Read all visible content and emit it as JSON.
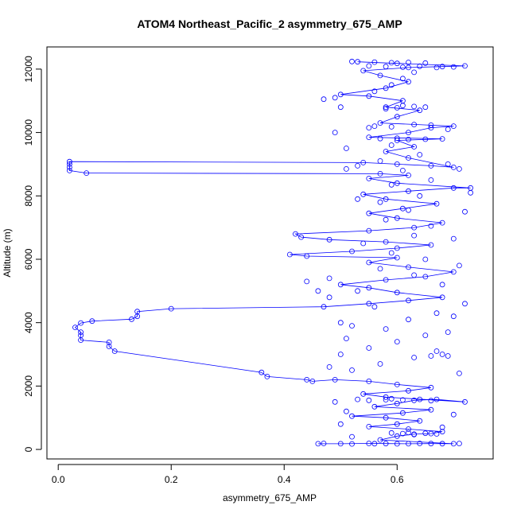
{
  "chart_data": {
    "type": "scatter",
    "title": "ATOM4 Northeast_Pacific_2 asymmetry_675_AMP",
    "xlabel": "asymmetry_675_AMP",
    "ylabel": "Altitude (m)",
    "xlim": [
      -0.02,
      0.77
    ],
    "ylim": [
      -300,
      12700
    ],
    "x_ticks": [
      0.0,
      0.2,
      0.4,
      0.6
    ],
    "x_tick_labels": [
      "0.0",
      "0.2",
      "0.4",
      "0.6"
    ],
    "y_ticks": [
      0,
      2000,
      4000,
      6000,
      8000,
      10000,
      12000
    ],
    "y_tick_labels": [
      "0",
      "2000",
      "4000",
      "6000",
      "8000",
      "10000",
      "12000"
    ],
    "grid": false,
    "colors": {
      "series": "#0000ff",
      "axes": "#000000",
      "background": "#ffffff"
    },
    "series": [
      {
        "style": "points-and-lines",
        "points": [
          [
            0.46,
            180
          ],
          [
            0.5,
            180
          ],
          [
            0.55,
            190
          ],
          [
            0.58,
            185
          ],
          [
            0.62,
            180
          ],
          [
            0.66,
            185
          ],
          [
            0.7,
            180
          ],
          [
            0.57,
            300
          ],
          [
            0.6,
            420
          ],
          [
            0.63,
            480
          ],
          [
            0.66,
            500
          ],
          [
            0.68,
            560
          ],
          [
            0.62,
            640
          ],
          [
            0.55,
            720
          ],
          [
            0.6,
            800
          ],
          [
            0.64,
            900
          ],
          [
            0.58,
            1000
          ],
          [
            0.52,
            1050
          ],
          [
            0.61,
            1150
          ],
          [
            0.66,
            1250
          ],
          [
            0.56,
            1350
          ],
          [
            0.6,
            1450
          ],
          [
            0.63,
            1550
          ],
          [
            0.67,
            1580
          ],
          [
            0.72,
            1500
          ],
          [
            0.58,
            1650
          ],
          [
            0.54,
            1750
          ],
          [
            0.62,
            1850
          ],
          [
            0.66,
            1950
          ],
          [
            0.6,
            2050
          ],
          [
            0.55,
            2150
          ],
          [
            0.49,
            2200
          ],
          [
            0.45,
            2150
          ],
          [
            0.44,
            2200
          ],
          [
            0.37,
            2300
          ],
          [
            0.36,
            2430
          ],
          [
            0.1,
            3100
          ],
          [
            0.09,
            3250
          ],
          [
            0.09,
            3380
          ],
          [
            0.04,
            3450
          ],
          [
            0.04,
            3600
          ],
          [
            0.04,
            3700
          ],
          [
            0.03,
            3850
          ],
          [
            0.04,
            3990
          ],
          [
            0.06,
            4050
          ],
          [
            0.13,
            4110
          ],
          [
            0.14,
            4200
          ],
          [
            0.14,
            4350
          ],
          [
            0.2,
            4440
          ],
          [
            0.47,
            4500
          ],
          [
            0.55,
            4600
          ],
          [
            0.62,
            4700
          ],
          [
            0.68,
            4800
          ],
          [
            0.6,
            4950
          ],
          [
            0.55,
            5100
          ],
          [
            0.5,
            5200
          ],
          [
            0.58,
            5350
          ],
          [
            0.65,
            5450
          ],
          [
            0.7,
            5600
          ],
          [
            0.62,
            5750
          ],
          [
            0.55,
            5900
          ],
          [
            0.6,
            6050
          ],
          [
            0.44,
            6100
          ],
          [
            0.41,
            6150
          ],
          [
            0.52,
            6250
          ],
          [
            0.6,
            6350
          ],
          [
            0.66,
            6450
          ],
          [
            0.58,
            6550
          ],
          [
            0.48,
            6620
          ],
          [
            0.43,
            6700
          ],
          [
            0.42,
            6800
          ],
          [
            0.55,
            6900
          ],
          [
            0.63,
            7000
          ],
          [
            0.68,
            7150
          ],
          [
            0.6,
            7300
          ],
          [
            0.55,
            7450
          ],
          [
            0.61,
            7600
          ],
          [
            0.67,
            7750
          ],
          [
            0.58,
            7900
          ],
          [
            0.54,
            8050
          ],
          [
            0.62,
            8150
          ],
          [
            0.7,
            8250
          ],
          [
            0.73,
            8250
          ],
          [
            0.6,
            8400
          ],
          [
            0.55,
            8550
          ],
          [
            0.62,
            8650
          ],
          [
            0.57,
            8700
          ],
          [
            0.05,
            8720
          ],
          [
            0.02,
            8800
          ],
          [
            0.02,
            8900
          ],
          [
            0.02,
            9000
          ],
          [
            0.02,
            9080
          ],
          [
            0.54,
            9050
          ],
          [
            0.6,
            9000
          ],
          [
            0.66,
            8950
          ],
          [
            0.7,
            8900
          ],
          [
            0.62,
            9200
          ],
          [
            0.58,
            9400
          ],
          [
            0.63,
            9550
          ],
          [
            0.6,
            9750
          ],
          [
            0.68,
            9800
          ],
          [
            0.55,
            9850
          ],
          [
            0.62,
            10000
          ],
          [
            0.66,
            10150
          ],
          [
            0.7,
            10200
          ],
          [
            0.57,
            10300
          ],
          [
            0.6,
            10500
          ],
          [
            0.64,
            10700
          ],
          [
            0.58,
            10800
          ],
          [
            0.61,
            11000
          ],
          [
            0.55,
            11150
          ],
          [
            0.5,
            11200
          ],
          [
            0.58,
            11400
          ],
          [
            0.62,
            11600
          ],
          [
            0.57,
            11800
          ],
          [
            0.54,
            11950
          ],
          [
            0.62,
            12050
          ],
          [
            0.68,
            12080
          ],
          [
            0.72,
            12100
          ],
          [
            0.6,
            12180
          ],
          [
            0.53,
            12230
          ]
        ]
      },
      {
        "style": "points",
        "points": [
          [
            0.47,
            190
          ],
          [
            0.52,
            175
          ],
          [
            0.56,
            182
          ],
          [
            0.6,
            178
          ],
          [
            0.64,
            190
          ],
          [
            0.68,
            182
          ],
          [
            0.71,
            188
          ],
          [
            0.59,
            520
          ],
          [
            0.62,
            530
          ],
          [
            0.65,
            510
          ],
          [
            0.67,
            490
          ],
          [
            0.63,
            470
          ],
          [
            0.61,
            500
          ],
          [
            0.55,
            1550
          ],
          [
            0.58,
            1570
          ],
          [
            0.61,
            1560
          ],
          [
            0.64,
            1580
          ],
          [
            0.66,
            1540
          ],
          [
            0.59,
            1600
          ],
          [
            0.53,
            1580
          ],
          [
            0.52,
            2500
          ],
          [
            0.57,
            2700
          ],
          [
            0.63,
            2900
          ],
          [
            0.68,
            3000
          ],
          [
            0.55,
            3200
          ],
          [
            0.6,
            3400
          ],
          [
            0.65,
            3600
          ],
          [
            0.58,
            3800
          ],
          [
            0.52,
            3900
          ],
          [
            0.62,
            4100
          ],
          [
            0.67,
            4300
          ],
          [
            0.56,
            4500
          ],
          [
            0.48,
            4800
          ],
          [
            0.53,
            5000
          ],
          [
            0.68,
            5200
          ],
          [
            0.63,
            5500
          ],
          [
            0.57,
            5700
          ],
          [
            0.65,
            6000
          ],
          [
            0.59,
            6200
          ],
          [
            0.54,
            6500
          ],
          [
            0.63,
            6750
          ],
          [
            0.66,
            7050
          ],
          [
            0.58,
            7250
          ],
          [
            0.62,
            7550
          ],
          [
            0.57,
            7800
          ],
          [
            0.64,
            8000
          ],
          [
            0.59,
            8350
          ],
          [
            0.66,
            8500
          ],
          [
            0.61,
            8800
          ],
          [
            0.57,
            9100
          ],
          [
            0.64,
            9300
          ],
          [
            0.59,
            9600
          ],
          [
            0.62,
            9780
          ],
          [
            0.65,
            9790
          ],
          [
            0.57,
            9810
          ],
          [
            0.6,
            9820
          ],
          [
            0.56,
            10200
          ],
          [
            0.63,
            10250
          ],
          [
            0.66,
            10230
          ],
          [
            0.59,
            10180
          ],
          [
            0.55,
            10150
          ],
          [
            0.58,
            10750
          ],
          [
            0.61,
            10850
          ],
          [
            0.63,
            10820
          ],
          [
            0.65,
            10800
          ],
          [
            0.6,
            10780
          ],
          [
            0.56,
            11300
          ],
          [
            0.59,
            11500
          ],
          [
            0.61,
            11700
          ],
          [
            0.63,
            11900
          ],
          [
            0.55,
            12100
          ],
          [
            0.58,
            12080
          ],
          [
            0.61,
            12060
          ],
          [
            0.64,
            12090
          ],
          [
            0.67,
            12050
          ],
          [
            0.7,
            12070
          ],
          [
            0.52,
            12240
          ],
          [
            0.56,
            12220
          ],
          [
            0.59,
            12200
          ],
          [
            0.62,
            12210
          ],
          [
            0.65,
            12190
          ],
          [
            0.49,
            10000
          ],
          [
            0.51,
            9500
          ],
          [
            0.53,
            8950
          ],
          [
            0.51,
            8850
          ],
          [
            0.53,
            7900
          ],
          [
            0.47,
            11050
          ],
          [
            0.49,
            11100
          ],
          [
            0.5,
            10800
          ],
          [
            0.48,
            5400
          ],
          [
            0.46,
            5000
          ],
          [
            0.44,
            5300
          ],
          [
            0.5,
            4000
          ],
          [
            0.51,
            3500
          ],
          [
            0.5,
            3000
          ],
          [
            0.48,
            2600
          ],
          [
            0.49,
            1500
          ],
          [
            0.51,
            1200
          ],
          [
            0.5,
            800
          ],
          [
            0.52,
            400
          ],
          [
            0.69,
            3700
          ],
          [
            0.7,
            4200
          ],
          [
            0.72,
            4600
          ],
          [
            0.71,
            5800
          ],
          [
            0.7,
            6650
          ],
          [
            0.72,
            7500
          ],
          [
            0.73,
            8100
          ],
          [
            0.71,
            8850
          ],
          [
            0.69,
            10100
          ],
          [
            0.71,
            2400
          ],
          [
            0.7,
            1100
          ],
          [
            0.68,
            700
          ],
          [
            0.66,
            2950
          ],
          [
            0.69,
            2950
          ],
          [
            0.67,
            3100
          ],
          [
            0.69,
            9000
          ]
        ]
      }
    ]
  }
}
